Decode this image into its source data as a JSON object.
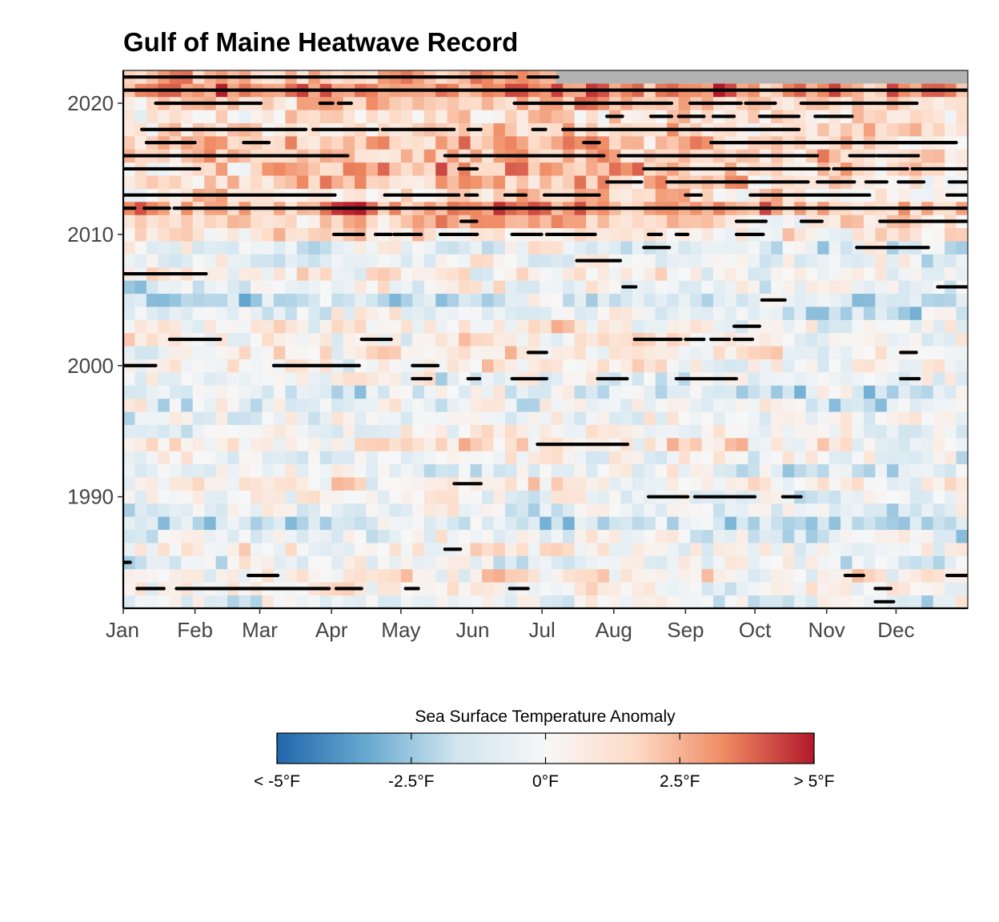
{
  "chart_data": {
    "type": "heatmap",
    "title": "Gulf of Maine Heatwave Record",
    "xlabel": "",
    "ylabel": "",
    "x_axis": {
      "unit": "day-of-year",
      "range": [
        1,
        365
      ],
      "ticks": [
        {
          "label": "Jan",
          "day": 1
        },
        {
          "label": "Feb",
          "day": 32
        },
        {
          "label": "Mar",
          "day": 60
        },
        {
          "label": "Apr",
          "day": 91
        },
        {
          "label": "May",
          "day": 121
        },
        {
          "label": "Jun",
          "day": 152
        },
        {
          "label": "Jul",
          "day": 182
        },
        {
          "label": "Aug",
          "day": 213
        },
        {
          "label": "Sep",
          "day": 244
        },
        {
          "label": "Oct",
          "day": 274
        },
        {
          "label": "Nov",
          "day": 305
        },
        {
          "label": "Dec",
          "day": 335
        }
      ]
    },
    "y_axis": {
      "unit": "year",
      "range": [
        1982,
        2022
      ],
      "ticks": [
        {
          "label": "1990",
          "year": 1990
        },
        {
          "label": "2000",
          "year": 2000
        },
        {
          "label": "2010",
          "year": 2010
        },
        {
          "label": "2020",
          "year": 2020
        }
      ]
    },
    "years": [
      1982,
      1983,
      1984,
      1985,
      1986,
      1987,
      1988,
      1989,
      1990,
      1991,
      1992,
      1993,
      1994,
      1995,
      1996,
      1997,
      1998,
      1999,
      2000,
      2001,
      2002,
      2003,
      2004,
      2005,
      2006,
      2007,
      2008,
      2009,
      2010,
      2011,
      2012,
      2013,
      2014,
      2015,
      2016,
      2017,
      2018,
      2019,
      2020,
      2021,
      2022
    ],
    "year_mean_anomaly_F": [
      -0.6,
      0.3,
      0.5,
      -0.3,
      0.2,
      -0.5,
      -1.2,
      -0.5,
      -0.2,
      0.4,
      -0.6,
      -0.5,
      0.6,
      -0.3,
      -0.4,
      -0.5,
      -1.0,
      -0.6,
      0.2,
      0.5,
      0.4,
      0.3,
      -0.8,
      -1.3,
      -0.5,
      0.2,
      -0.6,
      -0.4,
      0.9,
      1.3,
      2.6,
      1.2,
      1.5,
      1.8,
      2.0,
      1.8,
      1.6,
      1.0,
      1.9,
      3.2,
      2.4
    ],
    "no_data": {
      "year": 2022,
      "from_day": 188,
      "to_day": 365
    },
    "grid": false,
    "legend": {
      "title": "Sea Surface Temperature Anomaly",
      "placement": "bottom",
      "range": [
        -5,
        5
      ],
      "colors": [
        "#2166ac",
        "#67a9cf",
        "#d1e5f0",
        "#f7f7f7",
        "#fddbc7",
        "#ef8a62",
        "#b2182b"
      ],
      "labels": [
        {
          "text": "< -5°F",
          "value": -5
        },
        {
          "text": "-2.5°F",
          "value": -2.5
        },
        {
          "text": "0°F",
          "value": 0
        },
        {
          "text": "2.5°F",
          "value": 2.5
        },
        {
          "text": "> 5°F",
          "value": 5
        }
      ]
    },
    "heatwave_events": [
      {
        "year": 1982,
        "start": 326,
        "end": 333
      },
      {
        "year": 1983,
        "start": 7,
        "end": 18
      },
      {
        "year": 1983,
        "start": 24,
        "end": 89
      },
      {
        "year": 1983,
        "start": 93,
        "end": 103
      },
      {
        "year": 1983,
        "start": 123,
        "end": 128
      },
      {
        "year": 1983,
        "start": 168,
        "end": 175
      },
      {
        "year": 1983,
        "start": 326,
        "end": 332
      },
      {
        "year": 1984,
        "start": 55,
        "end": 67
      },
      {
        "year": 1984,
        "start": 313,
        "end": 320
      },
      {
        "year": 1984,
        "start": 357,
        "end": 365
      },
      {
        "year": 1985,
        "start": 1,
        "end": 3
      },
      {
        "year": 1986,
        "start": 140,
        "end": 146
      },
      {
        "year": 1990,
        "start": 228,
        "end": 244
      },
      {
        "year": 1990,
        "start": 248,
        "end": 273
      },
      {
        "year": 1990,
        "start": 286,
        "end": 293
      },
      {
        "year": 1991,
        "start": 144,
        "end": 155
      },
      {
        "year": 1994,
        "start": 180,
        "end": 218
      },
      {
        "year": 2000,
        "start": 1,
        "end": 14
      },
      {
        "year": 2000,
        "start": 66,
        "end": 102
      },
      {
        "year": 2000,
        "start": 126,
        "end": 136
      },
      {
        "year": 1999,
        "start": 126,
        "end": 133
      },
      {
        "year": 1999,
        "start": 150,
        "end": 154
      },
      {
        "year": 1999,
        "start": 169,
        "end": 183
      },
      {
        "year": 1999,
        "start": 206,
        "end": 218
      },
      {
        "year": 1999,
        "start": 240,
        "end": 265
      },
      {
        "year": 1999,
        "start": 337,
        "end": 344
      },
      {
        "year": 2001,
        "start": 176,
        "end": 183
      },
      {
        "year": 2001,
        "start": 337,
        "end": 343
      },
      {
        "year": 2002,
        "start": 21,
        "end": 42
      },
      {
        "year": 2002,
        "start": 104,
        "end": 116
      },
      {
        "year": 2002,
        "start": 222,
        "end": 241
      },
      {
        "year": 2002,
        "start": 244,
        "end": 251
      },
      {
        "year": 2002,
        "start": 255,
        "end": 262
      },
      {
        "year": 2002,
        "start": 265,
        "end": 272
      },
      {
        "year": 2003,
        "start": 265,
        "end": 275
      },
      {
        "year": 2005,
        "start": 277,
        "end": 286
      },
      {
        "year": 2006,
        "start": 217,
        "end": 222
      },
      {
        "year": 2006,
        "start": 353,
        "end": 365
      },
      {
        "year": 2007,
        "start": 1,
        "end": 36
      },
      {
        "year": 2008,
        "start": 197,
        "end": 215
      },
      {
        "year": 2009,
        "start": 226,
        "end": 236
      },
      {
        "year": 2009,
        "start": 318,
        "end": 348
      },
      {
        "year": 2010,
        "start": 92,
        "end": 104
      },
      {
        "year": 2010,
        "start": 110,
        "end": 116
      },
      {
        "year": 2010,
        "start": 118,
        "end": 124
      },
      {
        "year": 2010,
        "start": 123,
        "end": 129
      },
      {
        "year": 2010,
        "start": 138,
        "end": 153
      },
      {
        "year": 2010,
        "start": 169,
        "end": 181
      },
      {
        "year": 2010,
        "start": 184,
        "end": 204
      },
      {
        "year": 2010,
        "start": 228,
        "end": 233
      },
      {
        "year": 2010,
        "start": 240,
        "end": 244
      },
      {
        "year": 2010,
        "start": 266,
        "end": 277
      },
      {
        "year": 2011,
        "start": 147,
        "end": 153
      },
      {
        "year": 2011,
        "start": 266,
        "end": 278
      },
      {
        "year": 2011,
        "start": 294,
        "end": 302
      },
      {
        "year": 2011,
        "start": 328,
        "end": 365
      },
      {
        "year": 2012,
        "start": 1,
        "end": 5
      },
      {
        "year": 2012,
        "start": 10,
        "end": 20
      },
      {
        "year": 2012,
        "start": 23,
        "end": 365
      },
      {
        "year": 2013,
        "start": 1,
        "end": 92
      },
      {
        "year": 2013,
        "start": 114,
        "end": 145
      },
      {
        "year": 2013,
        "start": 149,
        "end": 153
      },
      {
        "year": 2013,
        "start": 166,
        "end": 174
      },
      {
        "year": 2013,
        "start": 183,
        "end": 206
      },
      {
        "year": 2013,
        "start": 244,
        "end": 250
      },
      {
        "year": 2013,
        "start": 272,
        "end": 323
      },
      {
        "year": 2013,
        "start": 357,
        "end": 365
      },
      {
        "year": 2014,
        "start": 210,
        "end": 224
      },
      {
        "year": 2014,
        "start": 236,
        "end": 296
      },
      {
        "year": 2014,
        "start": 301,
        "end": 316
      },
      {
        "year": 2014,
        "start": 322,
        "end": 330
      },
      {
        "year": 2014,
        "start": 336,
        "end": 346
      },
      {
        "year": 2014,
        "start": 358,
        "end": 365
      },
      {
        "year": 2015,
        "start": 1,
        "end": 33
      },
      {
        "year": 2015,
        "start": 146,
        "end": 153
      },
      {
        "year": 2015,
        "start": 226,
        "end": 305
      },
      {
        "year": 2015,
        "start": 308,
        "end": 339
      },
      {
        "year": 2015,
        "start": 342,
        "end": 365
      },
      {
        "year": 2016,
        "start": 1,
        "end": 97
      },
      {
        "year": 2016,
        "start": 140,
        "end": 160
      },
      {
        "year": 2016,
        "start": 162,
        "end": 208
      },
      {
        "year": 2016,
        "start": 215,
        "end": 300
      },
      {
        "year": 2016,
        "start": 315,
        "end": 325
      },
      {
        "year": 2016,
        "start": 327,
        "end": 344
      },
      {
        "year": 2017,
        "start": 11,
        "end": 31
      },
      {
        "year": 2017,
        "start": 53,
        "end": 63
      },
      {
        "year": 2017,
        "start": 200,
        "end": 206
      },
      {
        "year": 2017,
        "start": 255,
        "end": 360
      },
      {
        "year": 2018,
        "start": 9,
        "end": 79
      },
      {
        "year": 2018,
        "start": 83,
        "end": 110
      },
      {
        "year": 2018,
        "start": 113,
        "end": 143
      },
      {
        "year": 2018,
        "start": 150,
        "end": 155
      },
      {
        "year": 2018,
        "start": 178,
        "end": 183
      },
      {
        "year": 2018,
        "start": 191,
        "end": 292
      },
      {
        "year": 2019,
        "start": 210,
        "end": 216
      },
      {
        "year": 2019,
        "start": 229,
        "end": 237
      },
      {
        "year": 2019,
        "start": 241,
        "end": 251
      },
      {
        "year": 2019,
        "start": 256,
        "end": 264
      },
      {
        "year": 2019,
        "start": 276,
        "end": 292
      },
      {
        "year": 2019,
        "start": 300,
        "end": 315
      },
      {
        "year": 2020,
        "start": 15,
        "end": 60
      },
      {
        "year": 2020,
        "start": 86,
        "end": 91
      },
      {
        "year": 2020,
        "start": 94,
        "end": 99
      },
      {
        "year": 2020,
        "start": 170,
        "end": 237
      },
      {
        "year": 2020,
        "start": 246,
        "end": 267
      },
      {
        "year": 2020,
        "start": 270,
        "end": 282
      },
      {
        "year": 2020,
        "start": 294,
        "end": 343
      },
      {
        "year": 2021,
        "start": 1,
        "end": 365
      },
      {
        "year": 2022,
        "start": 1,
        "end": 135
      },
      {
        "year": 2022,
        "start": 131,
        "end": 170
      },
      {
        "year": 2022,
        "start": 176,
        "end": 188
      }
    ]
  }
}
